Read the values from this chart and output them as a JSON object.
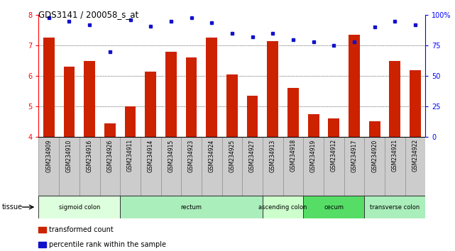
{
  "title": "GDS3141 / 200058_s_at",
  "samples": [
    "GSM234909",
    "GSM234910",
    "GSM234916",
    "GSM234926",
    "GSM234911",
    "GSM234914",
    "GSM234915",
    "GSM234923",
    "GSM234924",
    "GSM234925",
    "GSM234927",
    "GSM234913",
    "GSM234918",
    "GSM234919",
    "GSM234912",
    "GSM234917",
    "GSM234920",
    "GSM234921",
    "GSM234922"
  ],
  "bar_values": [
    7.25,
    6.3,
    6.5,
    4.45,
    5.0,
    6.15,
    6.8,
    6.6,
    7.25,
    6.05,
    5.35,
    7.15,
    5.6,
    4.75,
    4.6,
    7.35,
    4.5,
    6.5,
    6.2
  ],
  "dot_values": [
    98,
    95,
    92,
    70,
    96,
    91,
    95,
    98,
    94,
    85,
    82,
    85,
    80,
    78,
    75,
    78,
    90,
    95,
    92
  ],
  "ylim_left": [
    4,
    8
  ],
  "ylim_right": [
    0,
    100
  ],
  "yticks_left": [
    4,
    5,
    6,
    7,
    8
  ],
  "yticks_right": [
    0,
    25,
    50,
    75,
    100
  ],
  "bar_color": "#cc2200",
  "dot_color": "#1111cc",
  "bar_width": 0.55,
  "tissue_groups": [
    {
      "label": "sigmoid colon",
      "start": 0,
      "end": 4,
      "color": "#ddffdd"
    },
    {
      "label": "rectum",
      "start": 4,
      "end": 11,
      "color": "#aaeebb"
    },
    {
      "label": "ascending colon",
      "start": 11,
      "end": 13,
      "color": "#ccffcc"
    },
    {
      "label": "cecum",
      "start": 13,
      "end": 16,
      "color": "#55dd66"
    },
    {
      "label": "transverse colon",
      "start": 16,
      "end": 19,
      "color": "#aaeebb"
    }
  ],
  "xlabel_tissue": "tissue",
  "legend_bar_label": "transformed count",
  "legend_dot_label": "percentile rank within the sample",
  "xlabel_bg": "#cccccc",
  "plot_bg": "#ffffff",
  "spine_color": "#000000"
}
